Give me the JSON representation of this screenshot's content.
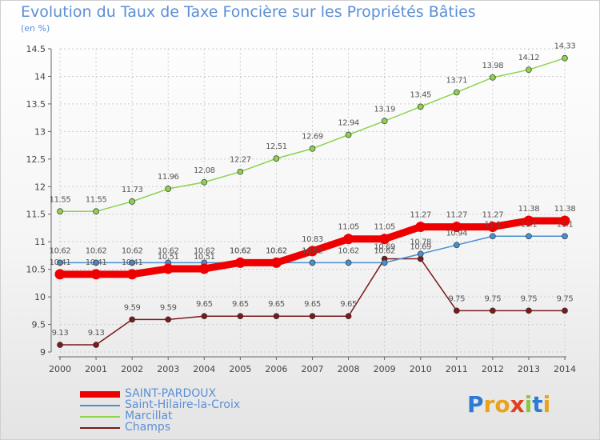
{
  "header": {
    "title": "Evolution du Taux de Taxe Foncière sur les Propriétés Bâties",
    "unit": "(en %)"
  },
  "logo": {
    "text": "Proxiti"
  },
  "chart_data": {
    "type": "line",
    "title": "Evolution du Taux de Taxe Foncière sur les Propriétés Bâties",
    "ylabel": "(en %)",
    "xlabel": "",
    "ylim": [
      9,
      14.5
    ],
    "yticks": [
      9,
      9.5,
      10,
      10.5,
      11,
      11.5,
      12,
      12.5,
      13,
      13.5,
      14,
      14.5
    ],
    "ytick_labels": [
      "9",
      "9.5",
      "10",
      "10.5",
      "11",
      "11.5",
      "12",
      "12.5",
      "13",
      "13.5",
      "14",
      "14.5"
    ],
    "categories": [
      "2000",
      "2001",
      "2002",
      "2003",
      "2004",
      "2005",
      "2006",
      "2007",
      "2008",
      "2009",
      "2010",
      "2011",
      "2012",
      "2013",
      "2014"
    ],
    "legend_position": "bottom-left",
    "series": [
      {
        "name": "SAINT-PARDOUX",
        "color": "#ee0000",
        "values": [
          10.41,
          10.41,
          10.41,
          10.51,
          10.51,
          10.62,
          10.62,
          10.83,
          11.05,
          11.05,
          11.27,
          11.27,
          11.27,
          11.38,
          11.38
        ],
        "labels": [
          "10.41",
          "10.41",
          "10.41",
          "10.51",
          "10.51",
          "10.62",
          "10.62",
          "10.83",
          "11.05",
          "11.05",
          "11.27",
          "11.27",
          "11.27",
          "11.38",
          "11.38"
        ]
      },
      {
        "name": "Saint-Hilaire-la-Croix",
        "color": "#4a8fcf",
        "values": [
          10.62,
          10.62,
          10.62,
          10.62,
          10.62,
          10.62,
          10.62,
          10.62,
          10.62,
          10.62,
          10.78,
          10.94,
          11.1,
          11.1,
          11.1
        ],
        "labels": [
          "10.62",
          "10.62",
          "10.62",
          "10.62",
          "10.62",
          "10.62",
          "10.62",
          "10.62",
          "10.62",
          "10.62",
          "10.78",
          "10.94",
          "11.1",
          "11.1",
          "11.1"
        ]
      },
      {
        "name": "Marcillat",
        "color": "#8fd14f",
        "values": [
          11.55,
          11.55,
          11.73,
          11.96,
          12.08,
          12.27,
          12.51,
          12.69,
          12.94,
          13.19,
          13.45,
          13.71,
          13.98,
          14.12,
          14.33
        ],
        "labels": [
          "11.55",
          "11.55",
          "11.73",
          "11.96",
          "12.08",
          "12.27",
          "12.51",
          "12.69",
          "12.94",
          "13.19",
          "13.45",
          "13.71",
          "13.98",
          "14.12",
          "14.33"
        ]
      },
      {
        "name": "Champs",
        "color": "#7a1a1a",
        "values": [
          9.13,
          9.13,
          9.59,
          9.59,
          9.65,
          9.65,
          9.65,
          9.65,
          9.65,
          10.69,
          10.69,
          9.75,
          9.75,
          9.75,
          9.75
        ],
        "labels": [
          "9.13",
          "9.13",
          "9.59",
          "9.59",
          "9.65",
          "9.65",
          "9.65",
          "9.65",
          "9.65",
          "10.69",
          "10.69",
          "9.75",
          "9.75",
          "9.75",
          "9.75"
        ]
      }
    ]
  }
}
